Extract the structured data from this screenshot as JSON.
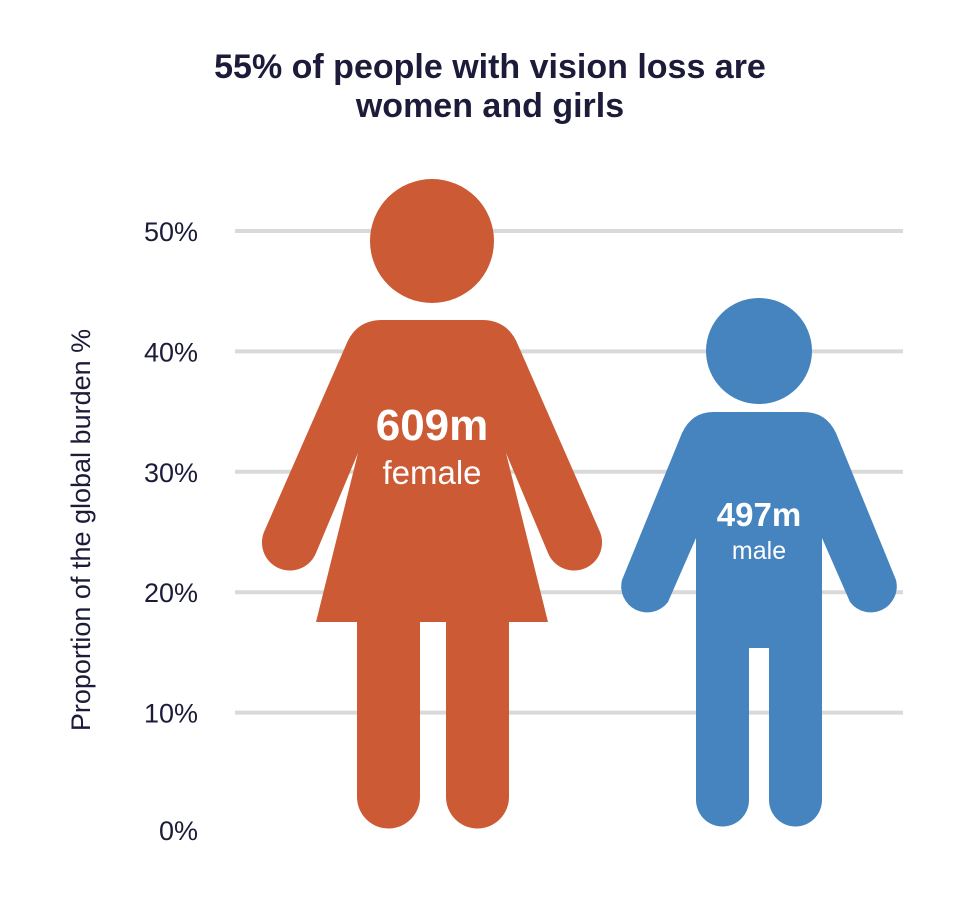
{
  "title": {
    "line1": "55% of people with vision loss are",
    "line2": "women and girls"
  },
  "chart_data": {
    "type": "bar",
    "title": "55% of people with vision loss are women and girls",
    "xlabel": "",
    "ylabel": "Proportion of the global burden %",
    "ylim": [
      0,
      50
    ],
    "yticks": [
      "0%",
      "10%",
      "20%",
      "30%",
      "40%",
      "50%"
    ],
    "grid": true,
    "categories": [
      "female",
      "male"
    ],
    "values": [
      55,
      45
    ],
    "data_labels": [
      "609m",
      "497m"
    ],
    "colors": [
      "#cc5a35",
      "#4584bf"
    ]
  }
}
